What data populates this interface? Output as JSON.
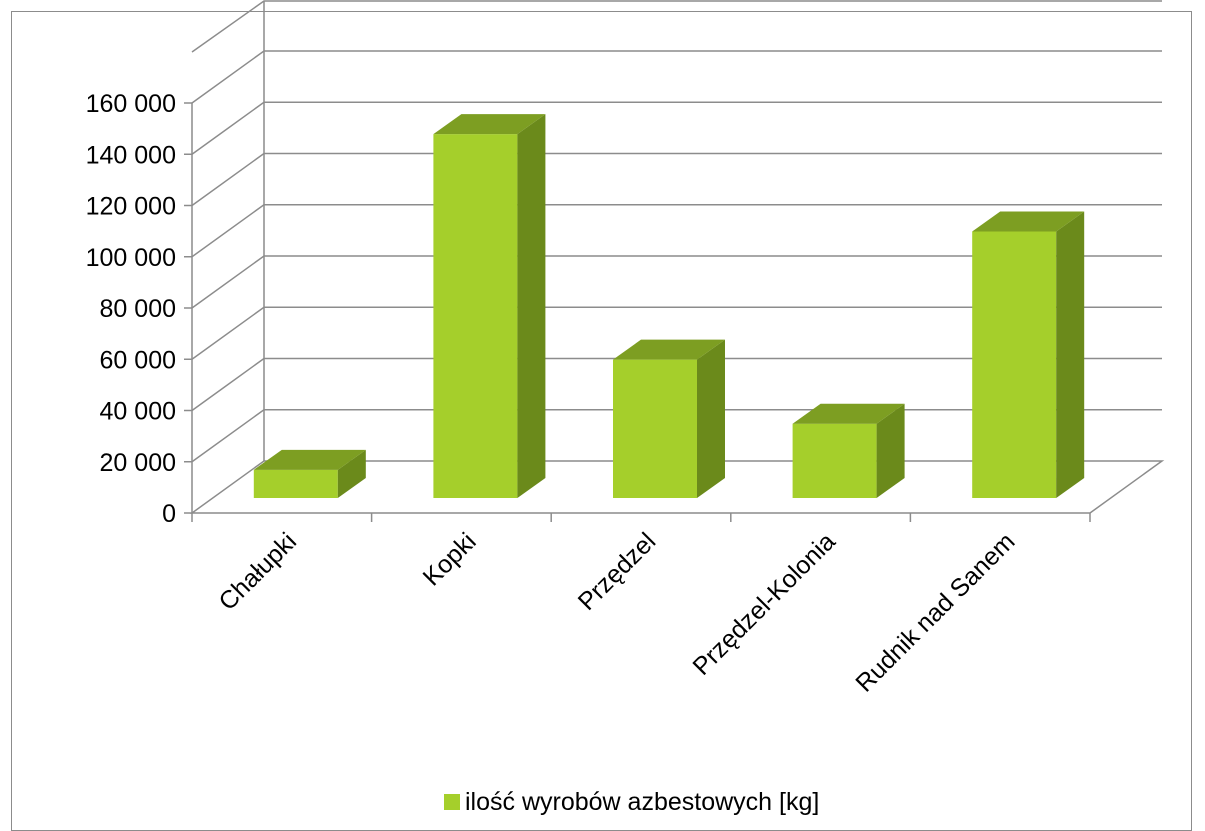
{
  "chart_data": {
    "type": "bar",
    "style": "3d-column",
    "categories": [
      "Chałupki",
      "Kopki",
      "Przędzel",
      "Przędzel-Kolonia",
      "Rudnik nad Sanem"
    ],
    "series": [
      {
        "name": "ilość wyrobów azbestowych [kg]",
        "values": [
          11000,
          142000,
          54000,
          29000,
          104000
        ],
        "color": "#a5cf2b",
        "side_color": "#6b8a1b",
        "top_color": "#7d9e22"
      }
    ],
    "yticks": [
      "0",
      "20 000",
      "40 000",
      "60 000",
      "80 000",
      "100 000",
      "120 000",
      "140 000",
      "160 000"
    ],
    "ylim": [
      0,
      160000
    ],
    "grid": true,
    "legend_position": "bottom"
  }
}
